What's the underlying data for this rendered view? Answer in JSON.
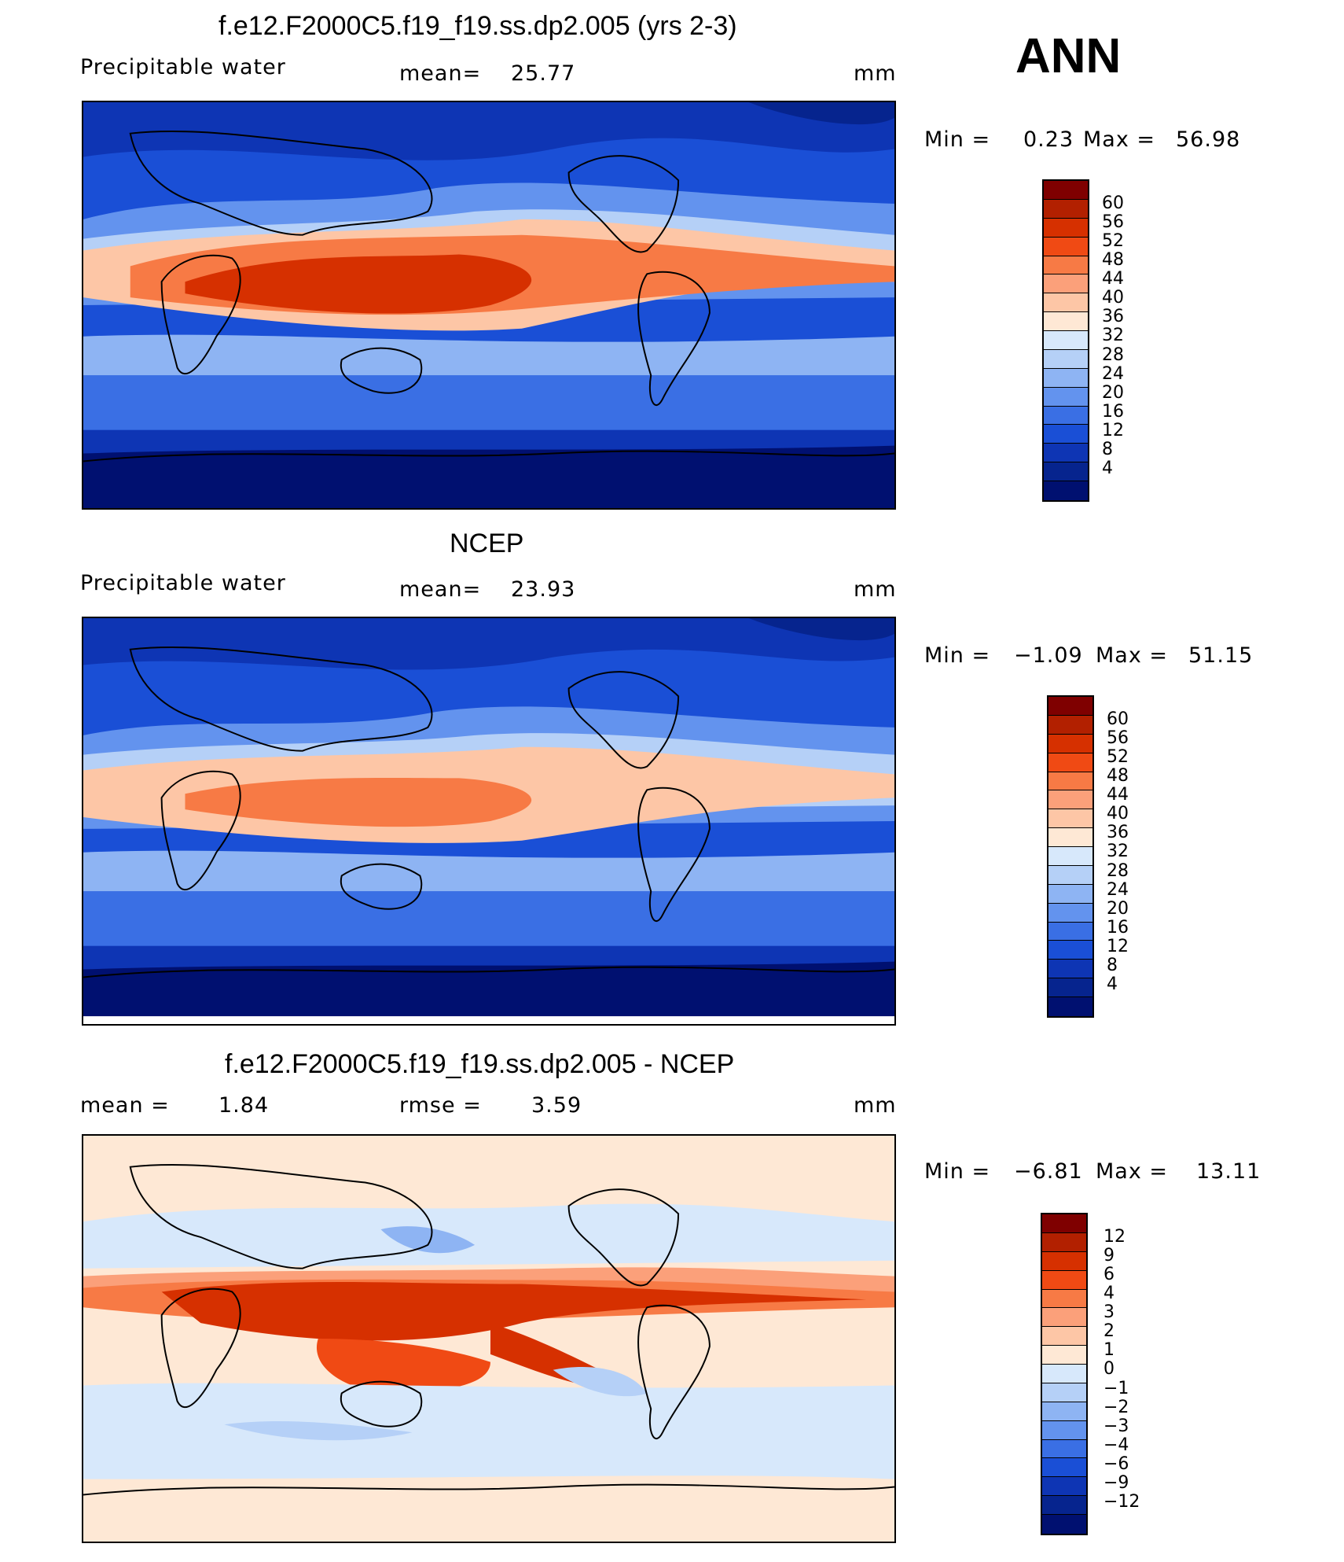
{
  "season": "ANN",
  "panels": [
    {
      "id": "model",
      "title": "f.e12.F2000C5.f19_f19.ss.dp2.005 (yrs 2-3)",
      "variable": "Precipitable  water",
      "stat_label": "mean=",
      "stat_value": "25.77",
      "units": "mm",
      "min_label": "Min  =",
      "min_value": "0.23",
      "max_label": "Max  =",
      "max_value": "56.98",
      "colorbar_labels": [
        "60",
        "56",
        "52",
        "48",
        "44",
        "40",
        "36",
        "32",
        "28",
        "24",
        "20",
        "16",
        "12",
        "8",
        "4"
      ]
    },
    {
      "id": "obs",
      "title": "NCEP",
      "variable": "Precipitable  water",
      "stat_label": "mean=",
      "stat_value": "23.93",
      "units": "mm",
      "min_label": "Min  =",
      "min_value": "−1.09",
      "max_label": "Max  =",
      "max_value": "51.15",
      "colorbar_labels": [
        "60",
        "56",
        "52",
        "48",
        "44",
        "40",
        "36",
        "32",
        "28",
        "24",
        "20",
        "16",
        "12",
        "8",
        "4"
      ]
    },
    {
      "id": "diff",
      "title": "f.e12.F2000C5.f19_f19.ss.dp2.005 - NCEP",
      "stat_label": "mean  =",
      "stat_value": "1.84",
      "stat2_label": "rmse  =",
      "stat2_value": "3.59",
      "units": "mm",
      "min_label": "Min  =",
      "min_value": "−6.81",
      "max_label": "Max  =",
      "max_value": "13.11",
      "colorbar_labels": [
        "12",
        "9",
        "6",
        "4",
        "3",
        "2",
        "1",
        "0",
        "−1",
        "−2",
        "−3",
        "−4",
        "−6",
        "−9",
        "−12"
      ]
    }
  ],
  "colors": {
    "full_scale": [
      "#7f0000",
      "#b22000",
      "#d63000",
      "#f04a14",
      "#f77a45",
      "#fba07a",
      "#fdc6a6",
      "#fee8d5",
      "#d7e8fb",
      "#b5d0f7",
      "#8eb4f3",
      "#6393ee",
      "#3a6fe4",
      "#1a4fd6",
      "#0e35b4",
      "#06248e",
      "#001070"
    ],
    "diff_scale": [
      "#7f0000",
      "#b22000",
      "#d63000",
      "#f04a14",
      "#f77a45",
      "#fba07a",
      "#fdc6a6",
      "#fee8d5",
      "#d7e8fb",
      "#b5d0f7",
      "#8eb4f3",
      "#6393ee",
      "#3a6fe4",
      "#1a4fd6",
      "#0e35b4",
      "#06248e",
      "#001070"
    ]
  }
}
